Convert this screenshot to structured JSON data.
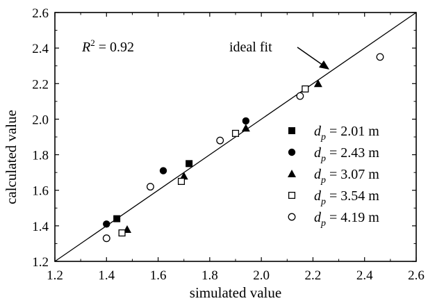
{
  "chart_data": {
    "type": "scatter",
    "xlabel": "simulated value",
    "ylabel": "calculated value",
    "xlim": [
      1.2,
      2.6
    ],
    "ylim": [
      1.2,
      2.6
    ],
    "xticks": [
      "1.2",
      "1.4",
      "1.6",
      "1.8",
      "2.0",
      "2.2",
      "2.4",
      "2.6"
    ],
    "yticks": [
      "1.2",
      "1.4",
      "1.6",
      "1.8",
      "2.0",
      "2.2",
      "2.4",
      "2.6"
    ],
    "grid": false,
    "legend_position": "right",
    "annotation": {
      "r2_label": "R",
      "r2_sup": "2",
      "r2_value": " = 0.92",
      "ideal_fit_label": "ideal fit"
    },
    "ideal_line": [
      [
        1.2,
        1.2
      ],
      [
        2.6,
        2.6
      ]
    ],
    "series": [
      {
        "name_var": "d",
        "name_sub": "p",
        "name_value": " = 2.01 m",
        "marker": "square-filled",
        "points": [
          [
            1.44,
            1.44
          ],
          [
            1.72,
            1.75
          ]
        ]
      },
      {
        "name_var": "d",
        "name_sub": "p",
        "name_value": " = 2.43 m",
        "marker": "circle-filled",
        "points": [
          [
            1.4,
            1.41
          ],
          [
            1.62,
            1.71
          ],
          [
            1.94,
            1.99
          ]
        ]
      },
      {
        "name_var": "d",
        "name_sub": "p",
        "name_value": " = 3.07 m",
        "marker": "triangle-filled",
        "points": [
          [
            1.48,
            1.38
          ],
          [
            1.7,
            1.68
          ],
          [
            1.94,
            1.95
          ],
          [
            2.22,
            2.2
          ]
        ]
      },
      {
        "name_var": "d",
        "name_sub": "p",
        "name_value": " = 3.54 m",
        "marker": "square-open",
        "points": [
          [
            1.46,
            1.36
          ],
          [
            1.69,
            1.65
          ],
          [
            1.9,
            1.92
          ],
          [
            2.17,
            2.17
          ]
        ]
      },
      {
        "name_var": "d",
        "name_sub": "p",
        "name_value": " = 4.19 m",
        "marker": "circle-open",
        "points": [
          [
            1.4,
            1.33
          ],
          [
            1.57,
            1.62
          ],
          [
            1.84,
            1.88
          ],
          [
            2.15,
            2.13
          ],
          [
            2.46,
            2.35
          ]
        ]
      }
    ]
  }
}
